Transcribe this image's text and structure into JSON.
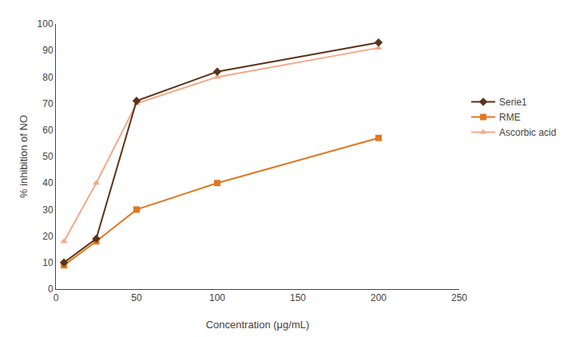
{
  "chart_data": {
    "type": "line",
    "x": [
      5,
      25,
      50,
      100,
      200
    ],
    "series": [
      {
        "name": "Ascorbic acid",
        "color": "#F4A988",
        "marker": "triangle-up",
        "values": [
          18,
          40,
          70,
          80,
          91
        ]
      },
      {
        "name": "RME",
        "color": "#E07820",
        "marker": "square",
        "values": [
          9,
          18,
          30,
          40,
          57
        ]
      },
      {
        "name": "Serie1",
        "color": "#5C3317",
        "marker": "diamond",
        "values": [
          10,
          19,
          71,
          82,
          93
        ]
      }
    ],
    "x_label": "Concentration (μg/mL)",
    "y_label": "% inhibition of NO",
    "xlim": [
      0,
      250
    ],
    "xticks": [
      0,
      50,
      100,
      150,
      200,
      250
    ],
    "ylim": [
      0,
      100
    ],
    "yticks": [
      0,
      10,
      20,
      30,
      40,
      50,
      60,
      70,
      80,
      90,
      100
    ],
    "grid": false,
    "legend": "right"
  }
}
